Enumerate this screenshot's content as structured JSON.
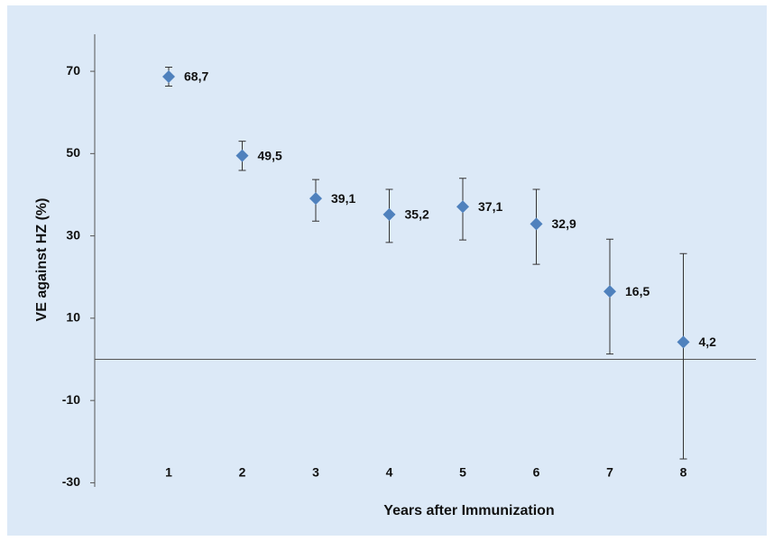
{
  "chart_data": {
    "type": "scatter",
    "x_label": "Years after Immunization",
    "y_label": "VE against HZ (%)",
    "categories": [
      "1",
      "2",
      "3",
      "4",
      "5",
      "6",
      "7",
      "8"
    ],
    "series": [
      {
        "color": "#4f81bd",
        "values": [
          68.7,
          49.5,
          39.1,
          35.2,
          37.1,
          32.9,
          16.5,
          4.2
        ],
        "value_labels": [
          "68,7",
          "49,5",
          "39,1",
          "35,2",
          "37,1",
          "32,9",
          "16,5",
          "4,2"
        ],
        "lower": [
          66.4,
          45.9,
          33.6,
          28.4,
          29.0,
          23.1,
          1.3,
          -24.2
        ],
        "upper": [
          71.0,
          53.0,
          43.7,
          41.3,
          44.0,
          41.3,
          29.2,
          25.7
        ]
      }
    ],
    "ylim": [
      -31,
      79
    ],
    "yticks": [
      -30,
      -10,
      10,
      30,
      50,
      70
    ],
    "grid": false
  }
}
